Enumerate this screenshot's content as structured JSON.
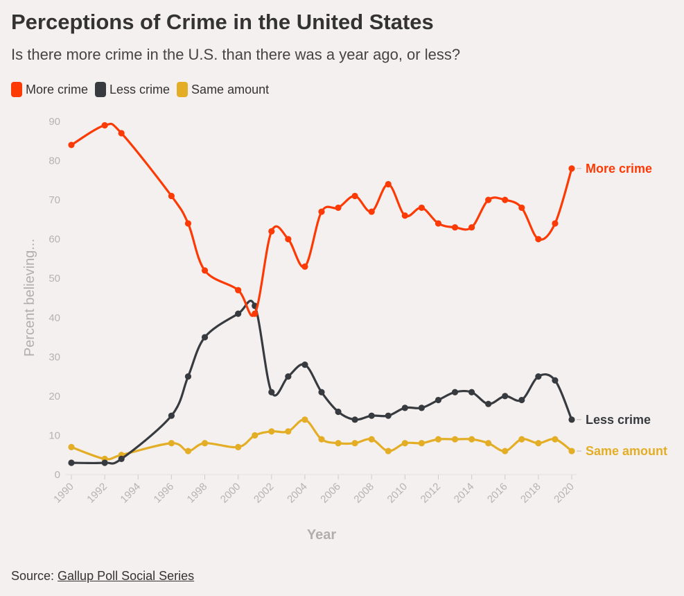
{
  "header": {
    "title": "Perceptions of Crime in the United States",
    "subtitle": "Is there more crime in the U.S. than there was a year ago, or less?"
  },
  "legend": [
    {
      "label": "More crime",
      "color": "#fc3a05"
    },
    {
      "label": "Less crime",
      "color": "#373b3f"
    },
    {
      "label": "Same amount",
      "color": "#e3ae26"
    }
  ],
  "source": {
    "prefix": "Source: ",
    "link_text": "Gallup Poll Social Series"
  },
  "chart_data": {
    "type": "line",
    "xlabel": "Year",
    "ylabel": "Percent believing...",
    "ylim": [
      0,
      90
    ],
    "xlim": [
      1990,
      2020
    ],
    "y_ticks": [
      0,
      10,
      20,
      30,
      40,
      50,
      60,
      70,
      80,
      90
    ],
    "x_ticks": [
      1990,
      1992,
      1994,
      1996,
      1998,
      2000,
      2002,
      2004,
      2006,
      2008,
      2010,
      2012,
      2014,
      2016,
      2018,
      2020
    ],
    "grid": false,
    "legend_position": "top-left",
    "series": [
      {
        "name": "More crime",
        "color": "#fc3a05",
        "end_label": "More crime",
        "x": [
          1990,
          1992,
          1993,
          1996,
          1997,
          1998,
          2000,
          2001,
          2002,
          2003,
          2004,
          2005,
          2006,
          2007,
          2008,
          2009,
          2010,
          2011,
          2012,
          2013,
          2014,
          2015,
          2016,
          2017,
          2018,
          2019,
          2020
        ],
        "values": [
          84,
          89,
          87,
          71,
          64,
          52,
          47,
          41,
          62,
          60,
          53,
          67,
          68,
          71,
          67,
          74,
          66,
          68,
          64,
          63,
          63,
          70,
          70,
          68,
          60,
          64,
          78
        ]
      },
      {
        "name": "Less crime",
        "color": "#373b3f",
        "end_label": "Less crime",
        "x": [
          1990,
          1992,
          1993,
          1996,
          1997,
          1998,
          2000,
          2001,
          2002,
          2003,
          2004,
          2005,
          2006,
          2007,
          2008,
          2009,
          2010,
          2011,
          2012,
          2013,
          2014,
          2015,
          2016,
          2017,
          2018,
          2019,
          2020
        ],
        "values": [
          3,
          3,
          4,
          15,
          25,
          35,
          41,
          43,
          21,
          25,
          28,
          21,
          16,
          14,
          15,
          15,
          17,
          17,
          19,
          21,
          21,
          18,
          20,
          19,
          25,
          24,
          14
        ]
      },
      {
        "name": "Same amount",
        "color": "#e3ae26",
        "end_label": "Same amount",
        "x": [
          1990,
          1992,
          1993,
          1996,
          1997,
          1998,
          2000,
          2001,
          2002,
          2003,
          2004,
          2005,
          2006,
          2007,
          2008,
          2009,
          2010,
          2011,
          2012,
          2013,
          2014,
          2015,
          2016,
          2017,
          2018,
          2019,
          2020
        ],
        "values": [
          7,
          4,
          5,
          8,
          6,
          8,
          7,
          10,
          11,
          11,
          14,
          9,
          8,
          8,
          9,
          6,
          8,
          8,
          9,
          9,
          9,
          8,
          6,
          9,
          8,
          9,
          6
        ]
      }
    ]
  }
}
